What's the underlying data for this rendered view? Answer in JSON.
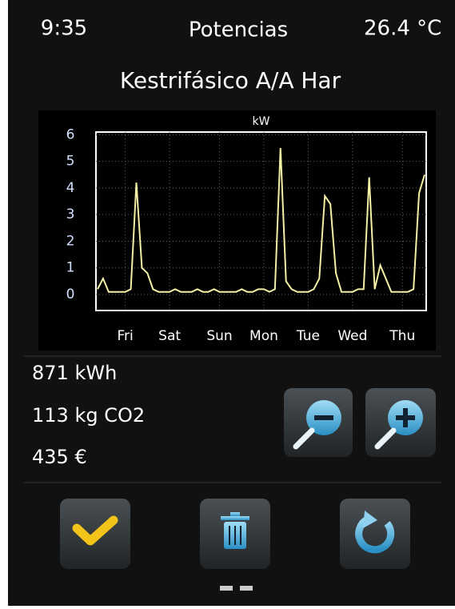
{
  "status_bar": {
    "time": "9:35",
    "title": "Potencias",
    "temperature": "26.4 °C"
  },
  "device_name": "Kestrifásico A/A Har",
  "chart_data": {
    "type": "line",
    "y_label": "kW",
    "categories": [
      null,
      null,
      null,
      null,
      null,
      "Fri",
      null,
      null,
      null,
      null,
      null,
      null,
      null,
      "Sat",
      null,
      null,
      null,
      null,
      null,
      null,
      null,
      null,
      "Sun",
      null,
      null,
      null,
      null,
      null,
      null,
      null,
      "Mon",
      null,
      null,
      null,
      null,
      null,
      null,
      null,
      "Tue",
      null,
      null,
      null,
      null,
      null,
      null,
      null,
      "Wed",
      null,
      null,
      null,
      null,
      null,
      null,
      null,
      null,
      "Thu",
      null,
      null,
      null,
      null
    ],
    "series": [
      {
        "name": "kW",
        "color": "#f4f0a6",
        "values": [
          0.2,
          0.6,
          0.1,
          0.1,
          0.1,
          0.1,
          0.2,
          4.2,
          1.0,
          0.8,
          0.2,
          0.1,
          0.1,
          0.1,
          0.2,
          0.1,
          0.1,
          0.1,
          0.2,
          0.1,
          0.1,
          0.2,
          0.1,
          0.1,
          0.1,
          0.1,
          0.2,
          0.1,
          0.1,
          0.2,
          0.2,
          0.1,
          0.2,
          5.5,
          0.5,
          0.2,
          0.1,
          0.1,
          0.1,
          0.2,
          0.6,
          3.7,
          3.4,
          0.8,
          0.1,
          0.1,
          0.1,
          0.2,
          0.2,
          4.4,
          0.2,
          1.1,
          0.6,
          0.1,
          0.1,
          0.1,
          0.1,
          0.2,
          3.8,
          4.5
        ]
      }
    ],
    "ylim": [
      -0.6,
      6.1
    ],
    "yticks": [
      0,
      1,
      2,
      3,
      4,
      5,
      6
    ],
    "grid": true
  },
  "stats": {
    "energy": "871 kWh",
    "co2": "113 kg CO2",
    "cost": "435 €"
  }
}
